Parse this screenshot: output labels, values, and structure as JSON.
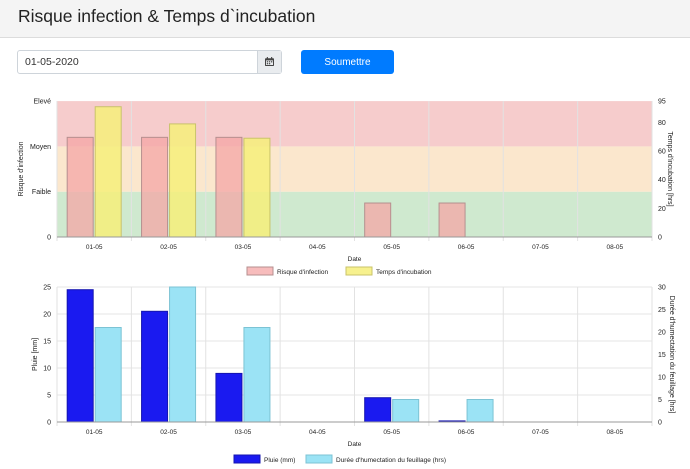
{
  "header": {
    "title": "Risque infection & Temps d`incubation"
  },
  "form": {
    "date_value": "01-05-2020",
    "calendar_icon": "calendar-icon",
    "submit_label": "Soumettre",
    "submit_color": "#007bff"
  },
  "chart_data": [
    {
      "type": "bar",
      "categories": [
        "01-05",
        "02-05",
        "03-05",
        "04-05",
        "05-05",
        "06-05",
        "07-05",
        "08-05"
      ],
      "xlabel": "Date",
      "ylabel_left": "Risque d'infection",
      "ylabel_right": "Temps d'incubation [hrs]",
      "left_ticks": [
        "0",
        "Faible",
        "Moyen",
        "Elevé"
      ],
      "right_ticks": [
        "0",
        "20",
        "40",
        "60",
        "80",
        "95"
      ],
      "ylim_right": [
        0,
        95
      ],
      "bands": [
        {
          "from": 0,
          "to": 1,
          "color": "#cfe9cf"
        },
        {
          "from": 1,
          "to": 2,
          "color": "#fbe7cd"
        },
        {
          "from": 2,
          "to": 3,
          "color": "#f6cccc"
        }
      ],
      "series": [
        {
          "name": "Risque d'infection",
          "axis": "left",
          "color": "#f4a6a6",
          "values": [
            2.2,
            2.2,
            2.2,
            0,
            0.75,
            0.75,
            0,
            0
          ]
        },
        {
          "name": "Temps d'incubation",
          "axis": "right",
          "color": "#f6ef7a",
          "values": [
            91,
            79,
            69,
            0,
            0,
            0,
            0,
            0
          ]
        }
      ],
      "legend_position": "bottom",
      "grid": true
    },
    {
      "type": "bar",
      "categories": [
        "01-05",
        "02-05",
        "03-05",
        "04-05",
        "05-05",
        "06-05",
        "07-05",
        "08-05"
      ],
      "xlabel": "Date",
      "ylabel_left": "Pluie [mm]",
      "ylabel_right": "Durée d'humectation du feuillage [hrs]",
      "left_ticks": [
        "0",
        "5",
        "10",
        "15",
        "20",
        "25"
      ],
      "right_ticks": [
        "0",
        "5",
        "10",
        "15",
        "20",
        "25",
        "30"
      ],
      "ylim_left": [
        0,
        25
      ],
      "ylim_right": [
        0,
        30
      ],
      "series": [
        {
          "name": "Pluie (mm)",
          "axis": "left",
          "color": "#1a1af0",
          "values": [
            24.5,
            20.5,
            9,
            0,
            4.5,
            0.2,
            0,
            0
          ]
        },
        {
          "name": "Durée d'humectation du feuillage (hrs)",
          "axis": "right",
          "color": "#9be3f5",
          "values": [
            21,
            30,
            21,
            0,
            5,
            5,
            0,
            0
          ]
        }
      ],
      "legend_position": "bottom",
      "grid": true
    }
  ]
}
